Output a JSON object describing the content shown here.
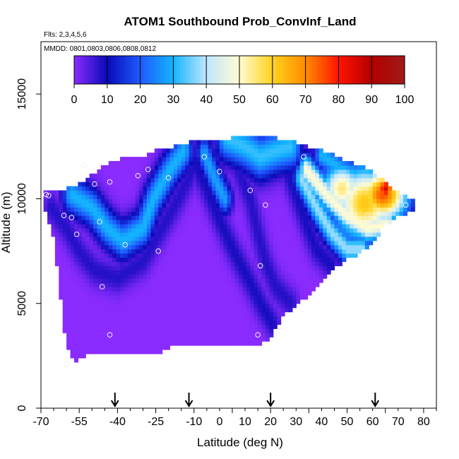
{
  "chart_data": {
    "type": "heatmap",
    "title": "ATOM1 Southbound Prob_ConvInf_Land",
    "notes": [
      "Flts: 2,3,4,5,6",
      "MMDD: 0801,0803,0806,0808,0812"
    ],
    "xlabel": "Latitude (deg N)",
    "ylabel": "Altitude (m)",
    "xlim": [
      -70,
      85
    ],
    "ylim": [
      0,
      17500
    ],
    "x_ticks": [
      -70,
      -55,
      -40,
      -25,
      -10,
      5,
      20,
      35,
      50,
      65,
      80
    ],
    "x_tick_labels": [
      "-70",
      "-55",
      "-40",
      "-25",
      "-10",
      "0",
      "10",
      "20",
      "30",
      "40",
      "50",
      "60",
      "70",
      "80"
    ],
    "x_tick_label_values": [
      -70,
      -55,
      -40,
      -25,
      -10,
      0,
      10,
      20,
      30,
      40,
      50,
      60,
      70,
      80
    ],
    "y_tick_labels": [
      "0",
      "5000",
      "10000",
      "15000"
    ],
    "y_tick_label_values": [
      0,
      5000,
      10000,
      15000
    ],
    "colorbar": {
      "range": [
        0,
        100
      ],
      "tick_labels": [
        "0",
        "10",
        "20",
        "30",
        "40",
        "50",
        "60",
        "70",
        "80",
        "90",
        "100"
      ],
      "colors": [
        "#8a2bff",
        "#0a0ab8",
        "#1e5aff",
        "#14b4ff",
        "#bfe6ff",
        "#fffbd2",
        "#ffd21e",
        "#ff8c00",
        "#ff1400",
        "#b30000",
        "#a01a1a"
      ]
    },
    "envelope": [
      {
        "lat": -69,
        "bottom": 9900,
        "top": 10400
      },
      {
        "lat": -65,
        "bottom": 8200,
        "top": 10400
      },
      {
        "lat": -60,
        "bottom": 3000,
        "top": 10400
      },
      {
        "lat": -57,
        "bottom": 2200,
        "top": 10500
      },
      {
        "lat": -52,
        "bottom": 2700,
        "top": 10900
      },
      {
        "lat": -45,
        "bottom": 2700,
        "top": 11500
      },
      {
        "lat": -38,
        "bottom": 2700,
        "top": 11900
      },
      {
        "lat": -30,
        "bottom": 2700,
        "top": 11900
      },
      {
        "lat": -24,
        "bottom": 2700,
        "top": 12300
      },
      {
        "lat": -20,
        "bottom": 3000,
        "top": 12300
      },
      {
        "lat": -10,
        "bottom": 3000,
        "top": 12700
      },
      {
        "lat": 0,
        "bottom": 3000,
        "top": 12700
      },
      {
        "lat": 8,
        "bottom": 3000,
        "top": 12900
      },
      {
        "lat": 15,
        "bottom": 3000,
        "top": 12900
      },
      {
        "lat": 20,
        "bottom": 3500,
        "top": 12900
      },
      {
        "lat": 25,
        "bottom": 4500,
        "top": 12700
      },
      {
        "lat": 30,
        "bottom": 5000,
        "top": 12600
      },
      {
        "lat": 35,
        "bottom": 5500,
        "top": 12400
      },
      {
        "lat": 40,
        "bottom": 6200,
        "top": 12200
      },
      {
        "lat": 45,
        "bottom": 6800,
        "top": 12000
      },
      {
        "lat": 50,
        "bottom": 7200,
        "top": 11700
      },
      {
        "lat": 55,
        "bottom": 7500,
        "top": 11500
      },
      {
        "lat": 60,
        "bottom": 8000,
        "top": 11200
      },
      {
        "lat": 65,
        "bottom": 8800,
        "top": 10700
      },
      {
        "lat": 70,
        "bottom": 9300,
        "top": 10200
      },
      {
        "lat": 76,
        "bottom": 9500,
        "top": 9800
      }
    ],
    "features": [
      {
        "shape": "band",
        "value": 8,
        "width": 4,
        "points": [
          [
            -66,
            9600
          ],
          [
            -60,
            8600
          ],
          [
            -55,
            7500
          ],
          [
            -49,
            6600
          ],
          [
            -40,
            6200
          ],
          [
            -30,
            7000
          ],
          [
            -24,
            8300
          ],
          [
            -18,
            9600
          ],
          [
            -12,
            11000
          ],
          [
            -8,
            12200
          ]
        ]
      },
      {
        "shape": "band",
        "value": 30,
        "width": 5,
        "points": [
          [
            -58,
            10200
          ],
          [
            -50,
            9600
          ],
          [
            -44,
            8600
          ],
          [
            -38,
            8000
          ],
          [
            -30,
            8600
          ],
          [
            -26,
            10000
          ],
          [
            -20,
            11300
          ],
          [
            -14,
            12300
          ]
        ]
      },
      {
        "shape": "band",
        "value": 9,
        "width": 4,
        "points": [
          [
            -10,
            11800
          ],
          [
            -5,
            10500
          ],
          [
            0,
            9000
          ],
          [
            6,
            7400
          ],
          [
            12,
            6000
          ],
          [
            17,
            4800
          ],
          [
            21,
            4000
          ]
        ]
      },
      {
        "shape": "band",
        "value": 28,
        "width": 4,
        "points": [
          [
            -6,
            12200
          ],
          [
            -2,
            11000
          ],
          [
            2,
            10000
          ]
        ]
      },
      {
        "shape": "band",
        "value": 8,
        "width": 4,
        "points": [
          [
            4,
            12500
          ],
          [
            8,
            11200
          ],
          [
            12,
            10000
          ],
          [
            15,
            8400
          ],
          [
            18,
            7000
          ],
          [
            22,
            5800
          ],
          [
            28,
            5000
          ]
        ]
      },
      {
        "shape": "band",
        "value": 32,
        "width": 6,
        "points": [
          [
            3,
            12900
          ],
          [
            10,
            12500
          ],
          [
            16,
            12000
          ],
          [
            22,
            12300
          ],
          [
            28,
            12500
          ]
        ]
      },
      {
        "shape": "band",
        "value": 9,
        "width": 4,
        "points": [
          [
            22,
            12700
          ],
          [
            26,
            11500
          ],
          [
            30,
            10200
          ],
          [
            34,
            8800
          ],
          [
            38,
            7600
          ],
          [
            44,
            6800
          ]
        ]
      },
      {
        "shape": "band",
        "value": 38,
        "width": 4,
        "points": [
          [
            32,
            11000
          ],
          [
            38,
            9600
          ],
          [
            44,
            8400
          ],
          [
            50,
            7600
          ],
          [
            56,
            7600
          ]
        ]
      },
      {
        "shape": "band",
        "value": 50,
        "width": 4,
        "points": [
          [
            34,
            11400
          ],
          [
            42,
            10200
          ],
          [
            50,
            9200
          ],
          [
            58,
            8600
          ],
          [
            66,
            8800
          ]
        ]
      },
      {
        "shape": "band",
        "value": 30,
        "width": 4,
        "points": [
          [
            40,
            12100
          ],
          [
            48,
            11400
          ],
          [
            56,
            11000
          ],
          [
            64,
            10800
          ]
        ]
      },
      {
        "shape": "blob",
        "value": 75,
        "lat": 64,
        "alt": 10200,
        "rlat": 7,
        "ralt": 900
      },
      {
        "shape": "blob",
        "value": 85,
        "lat": 65,
        "alt": 10500,
        "rlat": 3,
        "ralt": 500
      },
      {
        "shape": "blob",
        "value": 62,
        "lat": 57,
        "alt": 9800,
        "rlat": 9,
        "ralt": 1300
      },
      {
        "shape": "blob",
        "value": 55,
        "lat": 48,
        "alt": 10500,
        "rlat": 6,
        "ralt": 900
      }
    ],
    "observation_points": [
      [
        -68,
        10200
      ],
      [
        -67,
        10150
      ],
      [
        -61,
        9200
      ],
      [
        -58,
        9100
      ],
      [
        -56,
        8300
      ],
      [
        -53,
        11600
      ],
      [
        -49,
        10700
      ],
      [
        -47,
        8900
      ],
      [
        -43,
        10800
      ],
      [
        -37,
        7800
      ],
      [
        -32,
        11100
      ],
      [
        -28,
        11400
      ],
      [
        -24,
        7500
      ],
      [
        -20,
        11000
      ],
      [
        -6,
        12000
      ],
      [
        0,
        11300
      ],
      [
        12,
        10400
      ],
      [
        16,
        6800
      ],
      [
        18,
        9700
      ],
      [
        24,
        3700
      ],
      [
        33,
        12000
      ],
      [
        38,
        11100
      ],
      [
        48,
        11000
      ],
      [
        58,
        9200
      ],
      [
        73,
        9700
      ],
      [
        -46,
        5800
      ],
      [
        -43,
        3500
      ],
      [
        -60,
        2100
      ],
      [
        15,
        3500
      ]
    ],
    "arrow_latitudes": [
      -41,
      -12,
      20,
      61
    ]
  }
}
